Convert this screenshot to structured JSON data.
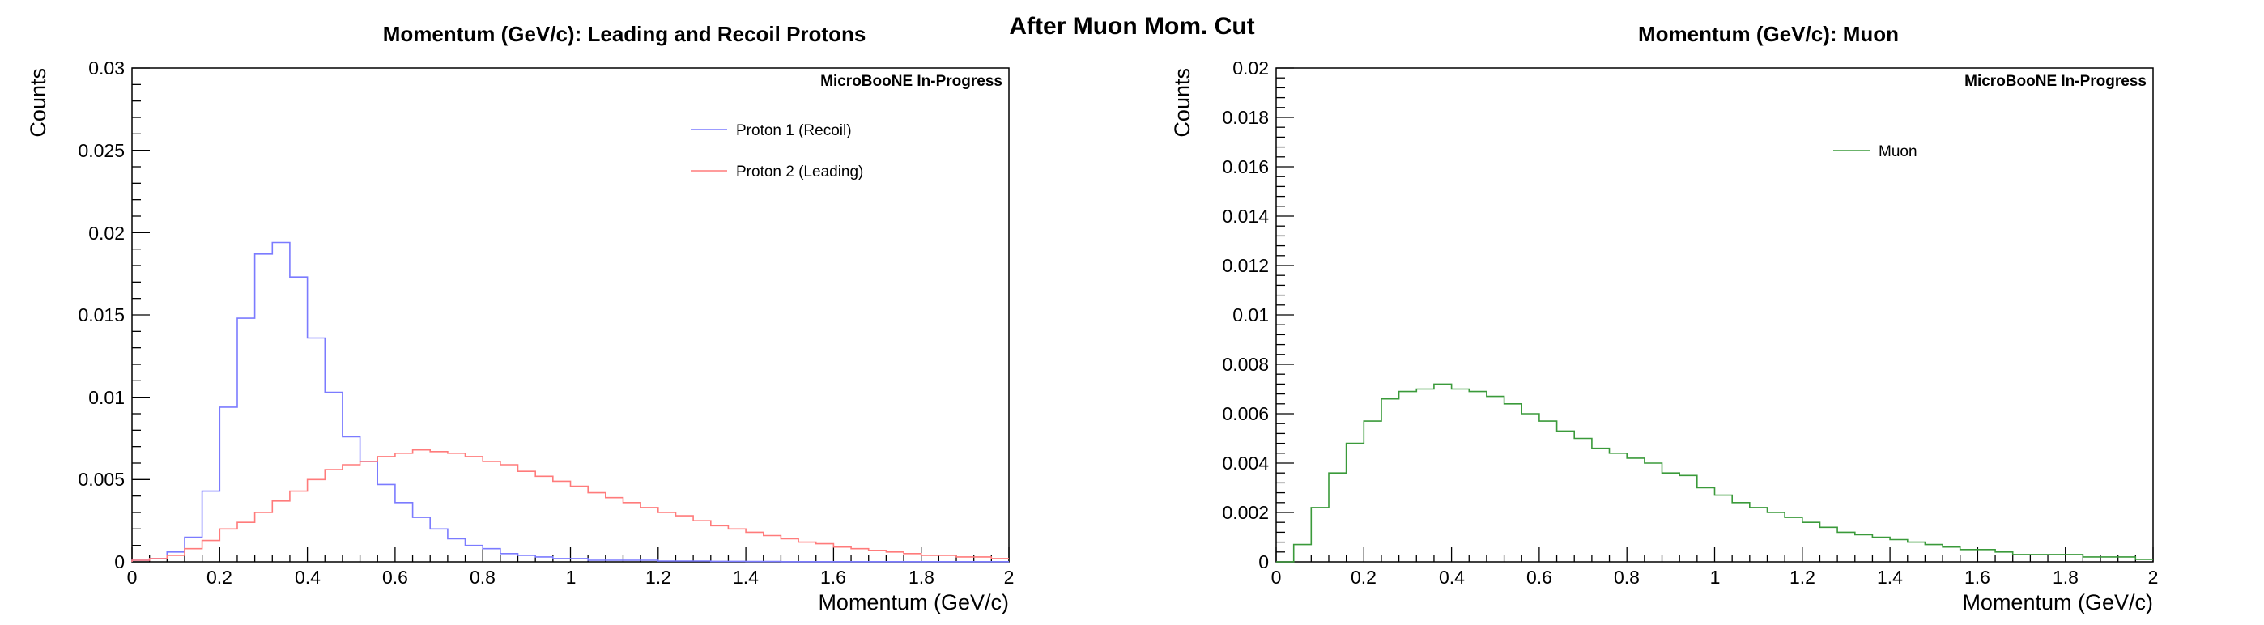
{
  "figure_title": "After Muon Mom. Cut",
  "chart_data": [
    {
      "type": "histogram",
      "title": "Momentum (GeV/c): Leading and Recoil Protons",
      "xlabel": "Momentum (GeV/c)",
      "ylabel": "Counts",
      "badge": "MicroBooNE In-Progress",
      "xlim": [
        0,
        2
      ],
      "ylim": [
        0,
        0.03
      ],
      "bin_width": 0.04,
      "x_ticks": [
        "0",
        "0.2",
        "0.4",
        "0.6",
        "0.8",
        "1",
        "1.2",
        "1.4",
        "1.6",
        "1.8",
        "2"
      ],
      "y_ticks": [
        "0",
        "0.005",
        "0.01",
        "0.015",
        "0.02",
        "0.025",
        "0.03"
      ],
      "grid": false,
      "legend_position": "top-right",
      "series": [
        {
          "name": "Proton 1 (Recoil)",
          "color": "#7b7bff",
          "values": [
            0.0001,
            0.0002,
            0.0006,
            0.0015,
            0.0043,
            0.0094,
            0.0148,
            0.0187,
            0.0194,
            0.0173,
            0.0136,
            0.0103,
            0.0076,
            0.0061,
            0.0047,
            0.0036,
            0.0027,
            0.002,
            0.0014,
            0.001,
            0.0008,
            0.0005,
            0.0004,
            0.0003,
            0.0002,
            0.0002,
            0.0001,
            0.0001,
            0.0001,
            0.0001,
            5e-05,
            5e-05,
            5e-05,
            3e-05,
            3e-05,
            2e-05,
            2e-05,
            1e-05,
            1e-05,
            1e-05,
            1e-05,
            1e-05,
            1e-05,
            1e-05,
            1e-05,
            1e-05,
            1e-05,
            1e-05,
            1e-05,
            1e-05
          ]
        },
        {
          "name": "Proton 2 (Leading)",
          "color": "#ff7b7b",
          "values": [
            0.0001,
            0.0002,
            0.0004,
            0.0008,
            0.0013,
            0.002,
            0.0024,
            0.003,
            0.0037,
            0.0043,
            0.005,
            0.0056,
            0.0059,
            0.0061,
            0.0064,
            0.0066,
            0.0068,
            0.0067,
            0.0066,
            0.0064,
            0.0061,
            0.0059,
            0.0055,
            0.0052,
            0.0049,
            0.0046,
            0.0042,
            0.0039,
            0.0036,
            0.0033,
            0.003,
            0.0028,
            0.0025,
            0.0022,
            0.002,
            0.0018,
            0.0016,
            0.0014,
            0.0012,
            0.0011,
            0.0009,
            0.0008,
            0.0007,
            0.0006,
            0.0005,
            0.0004,
            0.0004,
            0.0003,
            0.0003,
            0.0002
          ]
        }
      ]
    },
    {
      "type": "histogram",
      "title": "Momentum (GeV/c): Muon",
      "xlabel": "Momentum (GeV/c)",
      "ylabel": "Counts",
      "badge": "MicroBooNE In-Progress",
      "xlim": [
        0,
        2
      ],
      "ylim": [
        0,
        0.02
      ],
      "bin_width": 0.04,
      "x_ticks": [
        "0",
        "0.2",
        "0.4",
        "0.6",
        "0.8",
        "1",
        "1.2",
        "1.4",
        "1.6",
        "1.8",
        "2"
      ],
      "y_ticks": [
        "0",
        "0.002",
        "0.004",
        "0.006",
        "0.008",
        "0.01",
        "0.012",
        "0.014",
        "0.016",
        "0.018",
        "0.02"
      ],
      "grid": false,
      "legend_position": "top-right",
      "series": [
        {
          "name": "Muon",
          "color": "#3a9a3a",
          "values": [
            0,
            0.0007,
            0.0022,
            0.0036,
            0.0048,
            0.0057,
            0.0066,
            0.0069,
            0.007,
            0.0072,
            0.007,
            0.0069,
            0.0067,
            0.0064,
            0.006,
            0.0057,
            0.0053,
            0.005,
            0.0046,
            0.0044,
            0.0042,
            0.004,
            0.0036,
            0.0035,
            0.003,
            0.0027,
            0.0024,
            0.0022,
            0.002,
            0.0018,
            0.0016,
            0.0014,
            0.0012,
            0.0011,
            0.001,
            0.0009,
            0.0008,
            0.0007,
            0.0006,
            0.0005,
            0.0005,
            0.0004,
            0.0003,
            0.0003,
            0.0003,
            0.0003,
            0.0002,
            0.0002,
            0.0002,
            0.0001
          ]
        }
      ]
    }
  ]
}
